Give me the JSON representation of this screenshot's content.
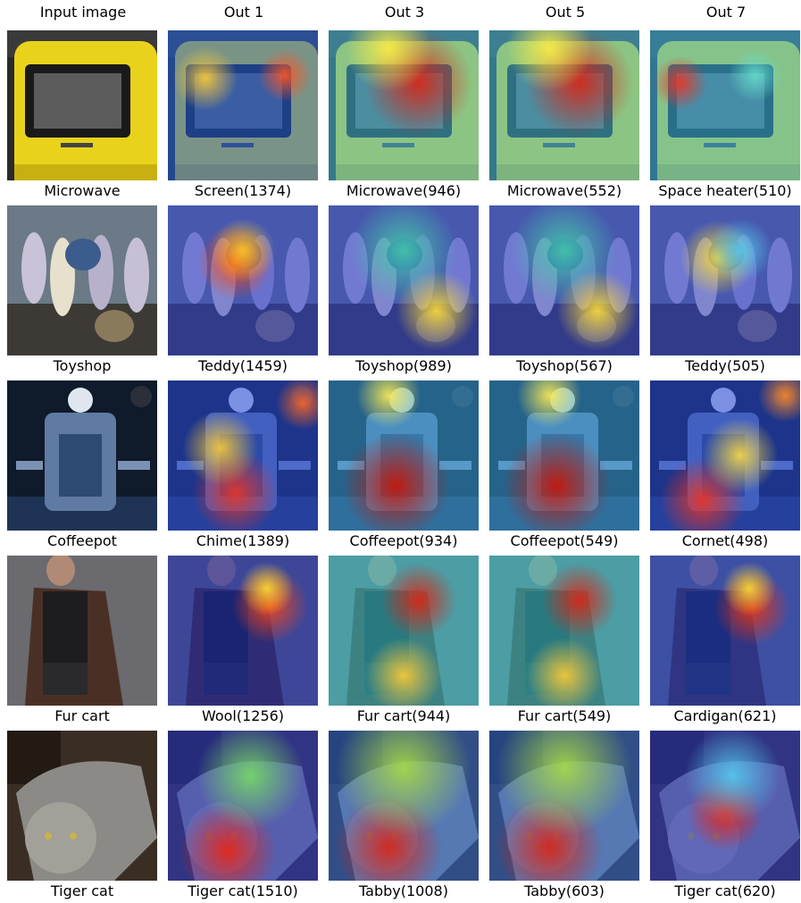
{
  "headers": [
    "Input image",
    "Out 1",
    "Out 3",
    "Out 5",
    "Out 7"
  ],
  "rows": [
    {
      "subject": "microwave",
      "captions": [
        "Microwave",
        "Screen(1374)",
        "Microwave(946)",
        "Microwave(552)",
        "Space heater(510)"
      ]
    },
    {
      "subject": "toyshop",
      "captions": [
        "Toyshop",
        "Teddy(1459)",
        "Toyshop(989)",
        "Toyshop(567)",
        "Teddy(505)"
      ]
    },
    {
      "subject": "coffeepot",
      "captions": [
        "Coffeepot",
        "Chime(1389)",
        "Coffeepot(934)",
        "Coffeepot(549)",
        "Cornet(498)"
      ]
    },
    {
      "subject": "fur-coat",
      "captions": [
        "Fur cart",
        "Wool(1256)",
        "Fur cart(944)",
        "Fur cart(549)",
        "Cardigan(621)"
      ]
    },
    {
      "subject": "tiger-cat",
      "captions": [
        "Tiger cat",
        "Tiger cat(1510)",
        "Tabby(1008)",
        "Tabby(603)",
        "Tiger cat(620)"
      ]
    }
  ]
}
